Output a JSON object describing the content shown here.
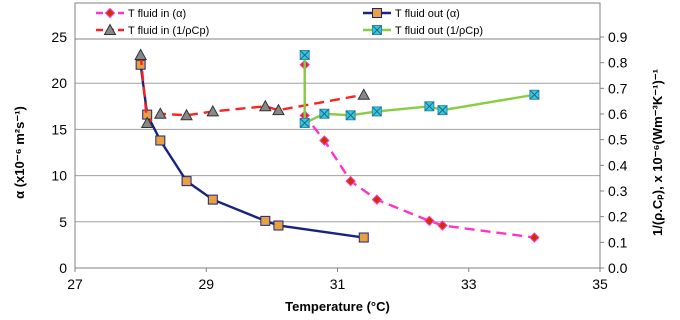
{
  "chart_data": {
    "type": "line",
    "xlabel": "Temperature (°C)",
    "ylabel": "α (x10⁻⁶ m²s⁻¹)",
    "y2label": "1/(ρ.Cₚ), x 10⁻⁶(Wm⁻³K⁻¹)⁻¹",
    "xlim": [
      27,
      35
    ],
    "ylim": [
      0,
      25
    ],
    "y2lim": [
      0,
      0.9
    ],
    "xticks": [
      "27",
      "29",
      "31",
      "33",
      "35"
    ],
    "yticks": [
      "0",
      "5",
      "10",
      "15",
      "20",
      "25"
    ],
    "y2ticks": [
      "0.0",
      "0.1",
      "0.2",
      "0.3",
      "0.4",
      "0.5",
      "0.6",
      "0.7",
      "0.8",
      "0.9"
    ],
    "grid": true,
    "legend_position": "top",
    "series": [
      {
        "name": "T fluid in (α)",
        "axis": "left",
        "color": "#ff33cc",
        "marker_fill": "#cc3300",
        "marker": "diamond",
        "dash": true,
        "x": [
          30.5,
          30.5,
          30.8,
          31.2,
          31.6,
          32.4,
          32.6,
          34.0
        ],
        "y": [
          22.0,
          16.5,
          13.8,
          9.4,
          7.4,
          5.1,
          4.6,
          3.3
        ]
      },
      {
        "name": "T fluid out (α)",
        "axis": "left",
        "color": "#1a237e",
        "marker_fill": "#e8a040",
        "marker": "square",
        "dash": false,
        "x": [
          28.0,
          28.1,
          28.3,
          28.7,
          29.1,
          29.9,
          30.1,
          31.4
        ],
        "y": [
          22.0,
          16.6,
          13.8,
          9.4,
          7.4,
          5.1,
          4.6,
          3.3
        ]
      },
      {
        "name": "T fluid in (1/ρCp)",
        "axis": "right",
        "color": "#ff2020",
        "marker_fill": "#888888",
        "marker": "triangle",
        "dash": true,
        "x": [
          28.0,
          28.1,
          28.3,
          28.7,
          29.1,
          29.9,
          30.1,
          31.4
        ],
        "y": [
          0.83,
          0.565,
          0.601,
          0.595,
          0.61,
          0.63,
          0.615,
          0.675
        ]
      },
      {
        "name": "T fluid out (1/ρCp)",
        "axis": "right",
        "color": "#88cc44",
        "marker_fill": "#33ccdd",
        "marker": "square-x",
        "dash": false,
        "x": [
          30.5,
          30.5,
          30.8,
          31.2,
          31.6,
          32.4,
          32.6,
          34.0
        ],
        "y": [
          0.83,
          0.565,
          0.601,
          0.595,
          0.61,
          0.63,
          0.615,
          0.675
        ]
      }
    ]
  }
}
